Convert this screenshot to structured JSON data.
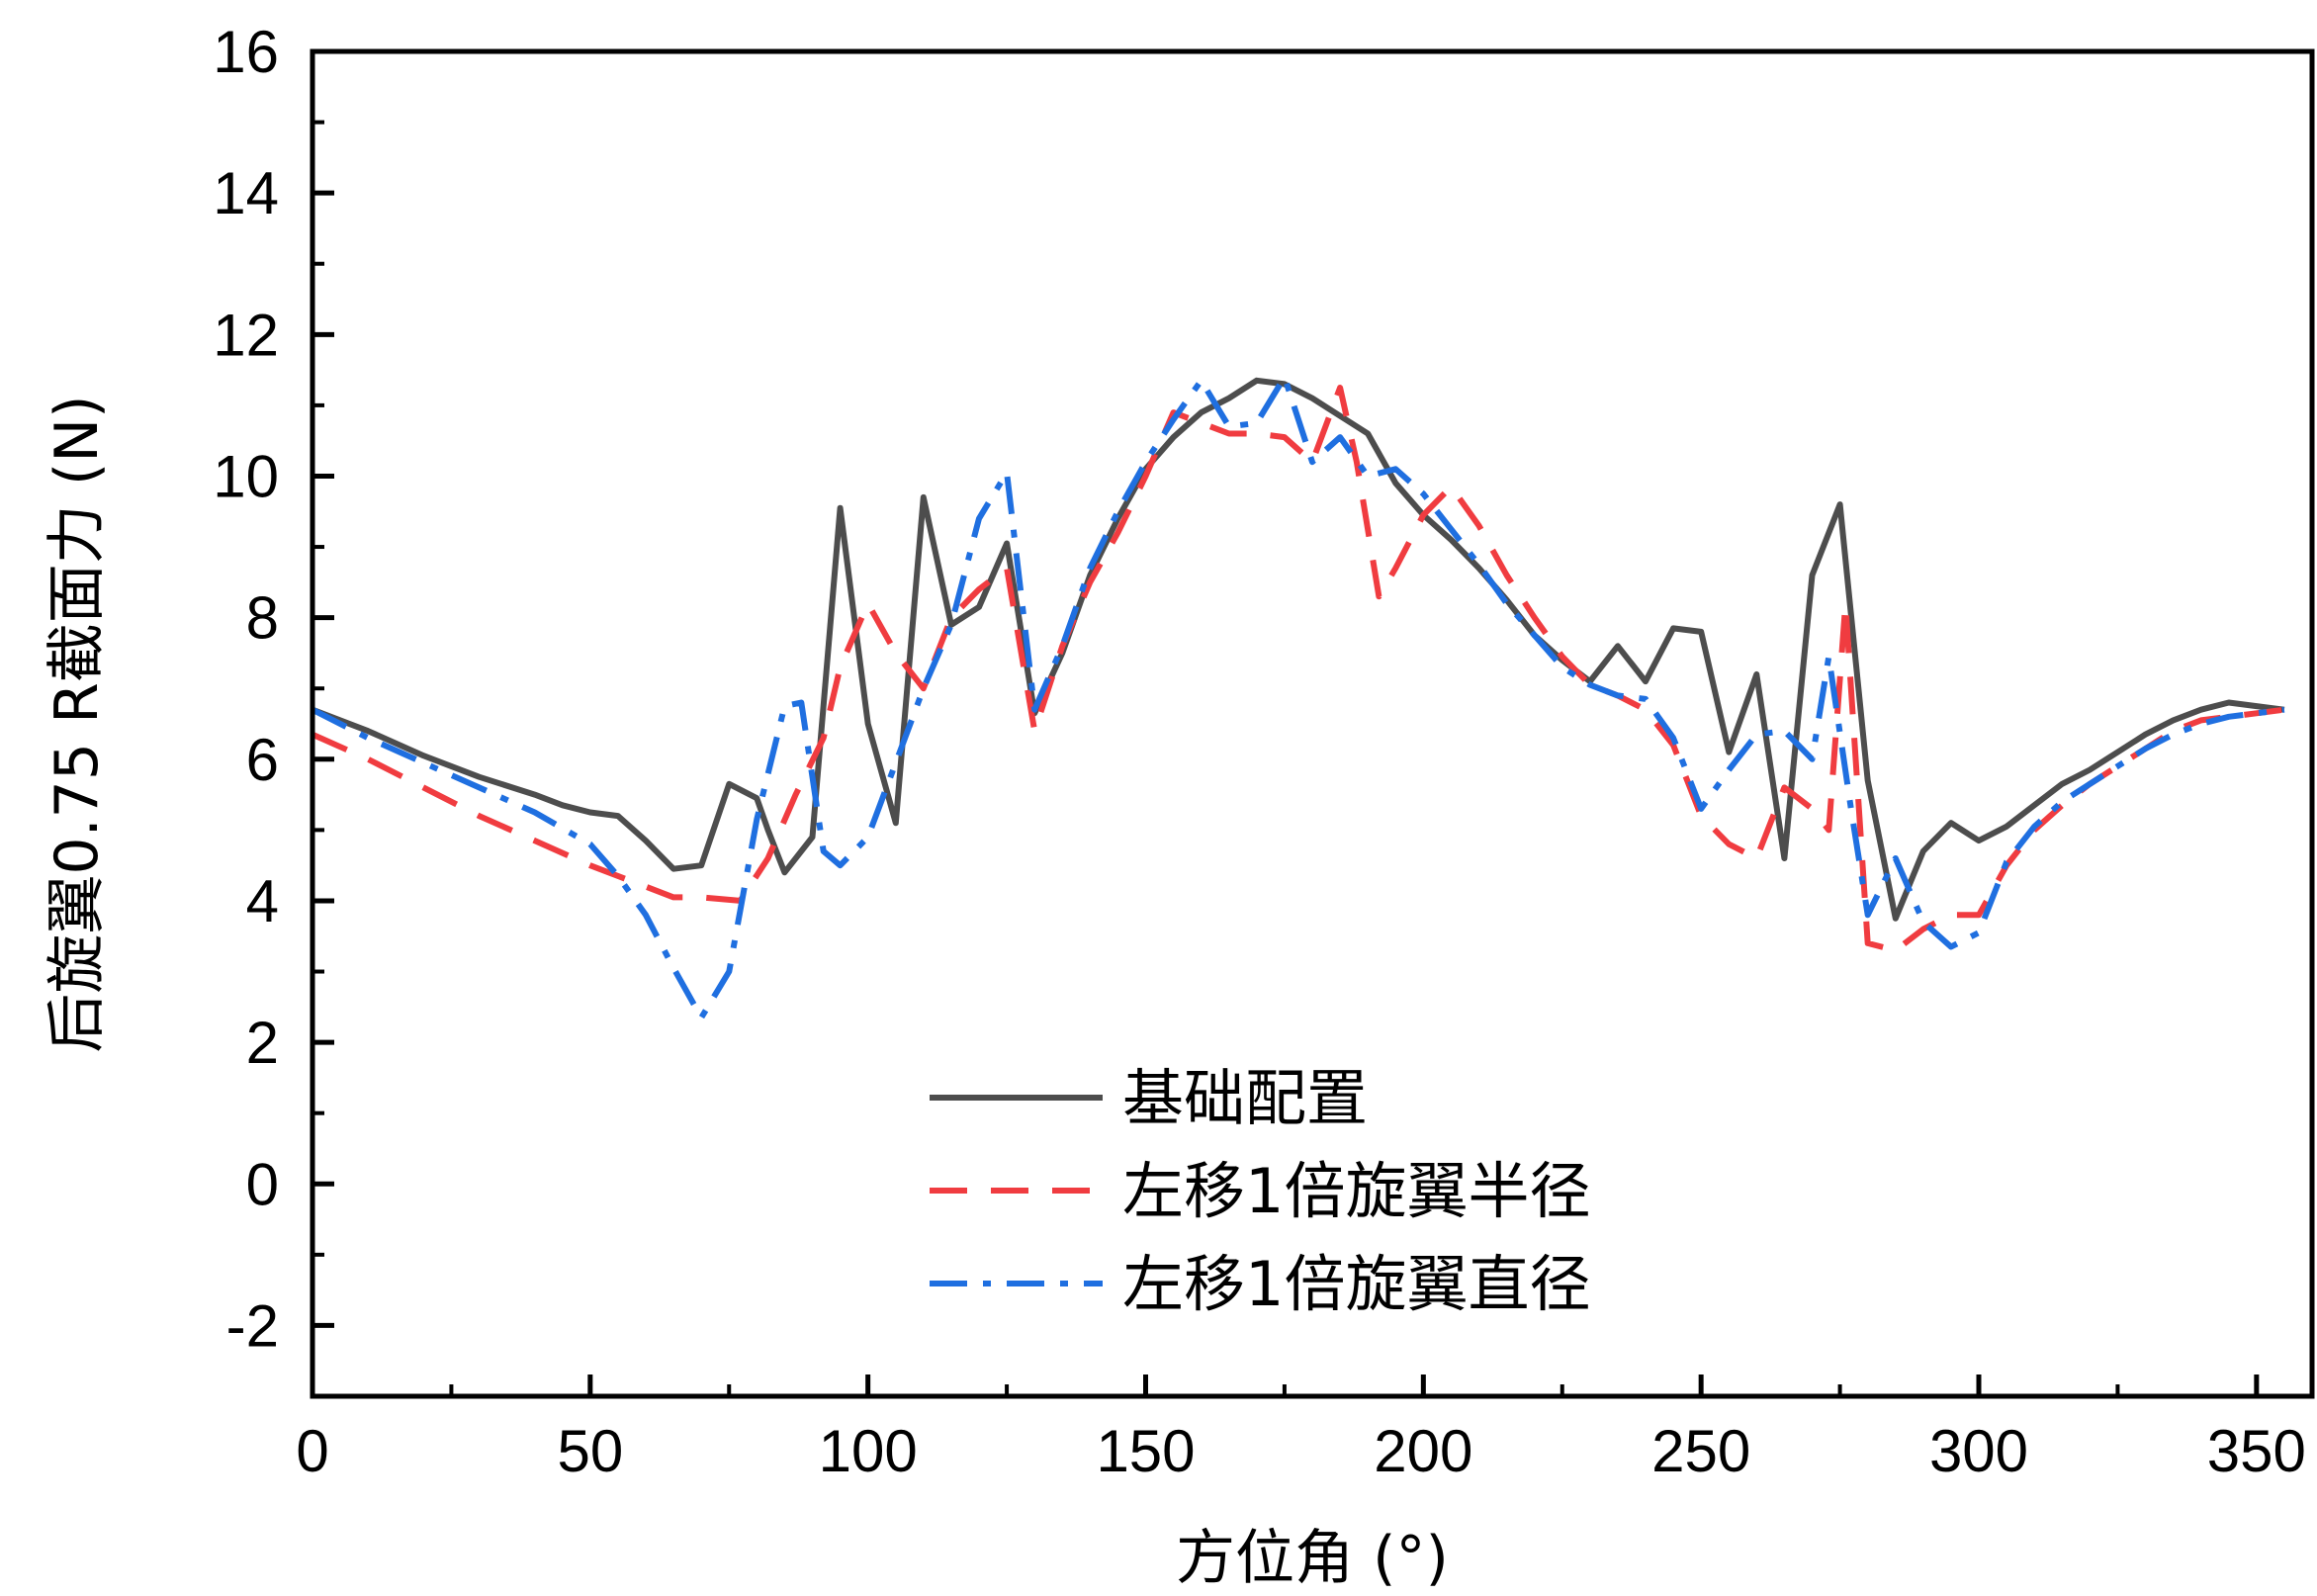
{
  "chart_data": {
    "type": "line",
    "xlabel": "方位角 (°)",
    "ylabel": "后旋翼0.75 R截面力 (N)",
    "xlim": [
      0,
      360
    ],
    "ylim": [
      -3,
      16
    ],
    "xticks": [
      0,
      50,
      100,
      150,
      200,
      250,
      300,
      350
    ],
    "yticks": [
      -2,
      0,
      2,
      4,
      6,
      8,
      10,
      12,
      14,
      16
    ],
    "legend_position": "bottom-center",
    "grid": false,
    "series": [
      {
        "name": "基础配置",
        "color": "#4d4d4d",
        "dash": "solid",
        "x": [
          0,
          10,
          20,
          30,
          40,
          45,
          50,
          55,
          60,
          65,
          70,
          75,
          80,
          82,
          85,
          90,
          95,
          100,
          105,
          110,
          115,
          120,
          125,
          130,
          135,
          140,
          145,
          150,
          155,
          160,
          165,
          170,
          175,
          180,
          185,
          190,
          195,
          200,
          205,
          210,
          215,
          220,
          225,
          230,
          235,
          240,
          245,
          250,
          255,
          260,
          265,
          270,
          275,
          280,
          285,
          290,
          295,
          300,
          305,
          310,
          315,
          320,
          325,
          330,
          335,
          340,
          345,
          350,
          355
        ],
        "y": [
          6.7,
          6.4,
          6.05,
          5.75,
          5.5,
          5.35,
          5.25,
          5.2,
          4.85,
          4.45,
          4.5,
          5.65,
          5.45,
          5.0,
          4.4,
          4.9,
          9.55,
          6.5,
          5.1,
          9.7,
          7.9,
          8.15,
          9.05,
          6.65,
          7.5,
          8.6,
          9.4,
          10.1,
          10.55,
          10.9,
          11.1,
          11.35,
          11.3,
          11.1,
          10.85,
          10.6,
          9.9,
          9.45,
          9.1,
          8.7,
          8.25,
          7.75,
          7.4,
          7.1,
          7.6,
          7.1,
          7.85,
          7.8,
          6.1,
          7.2,
          4.6,
          8.6,
          9.6,
          5.7,
          3.75,
          4.7,
          5.1,
          4.85,
          5.05,
          5.35,
          5.65,
          5.85,
          6.1,
          6.35,
          6.55,
          6.7,
          6.8,
          6.75,
          6.7
        ]
      },
      {
        "name": "左移1倍旋翼半径",
        "color": "#f03c40",
        "dash": "dashed",
        "x": [
          0,
          10,
          20,
          30,
          40,
          50,
          60,
          65,
          70,
          77,
          82,
          87,
          92,
          95,
          100,
          105,
          110,
          115,
          120,
          125,
          130,
          135,
          140,
          145,
          150,
          155,
          160,
          165,
          170,
          175,
          180,
          185,
          188,
          192,
          195,
          200,
          205,
          210,
          215,
          220,
          225,
          230,
          235,
          240,
          245,
          250,
          255,
          260,
          265,
          270,
          273,
          276,
          280,
          285,
          290,
          295,
          300,
          305,
          310,
          315,
          320,
          325,
          330,
          335,
          340,
          345,
          350,
          355
        ],
        "y": [
          6.35,
          6.0,
          5.6,
          5.2,
          4.85,
          4.5,
          4.2,
          4.05,
          4.05,
          4.0,
          4.6,
          5.5,
          6.3,
          7.3,
          8.2,
          7.5,
          7.0,
          8.0,
          8.4,
          8.7,
          6.4,
          7.6,
          8.5,
          9.2,
          10.0,
          10.9,
          10.75,
          10.6,
          10.6,
          10.55,
          10.2,
          11.25,
          10.2,
          8.3,
          8.7,
          9.45,
          9.85,
          9.3,
          8.6,
          8.0,
          7.45,
          7.05,
          6.9,
          6.7,
          6.2,
          5.2,
          4.8,
          4.6,
          5.6,
          5.3,
          5.0,
          8.2,
          3.4,
          3.3,
          3.6,
          3.8,
          3.8,
          4.5,
          5.0,
          5.35,
          5.65,
          5.9,
          6.15,
          6.4,
          6.55,
          6.6,
          6.65,
          6.7
        ]
      },
      {
        "name": "左移1倍旋翼直径",
        "color": "#1f6fe0",
        "dash": "dashdot",
        "x": [
          0,
          10,
          20,
          30,
          40,
          50,
          55,
          60,
          65,
          70,
          75,
          80,
          85,
          88,
          92,
          95,
          100,
          105,
          110,
          115,
          120,
          125,
          130,
          135,
          140,
          145,
          150,
          155,
          160,
          165,
          170,
          175,
          180,
          185,
          190,
          195,
          200,
          205,
          210,
          215,
          220,
          225,
          230,
          235,
          240,
          245,
          250,
          255,
          260,
          265,
          270,
          273,
          277,
          280,
          285,
          290,
          295,
          300,
          305,
          310,
          315,
          320,
          325,
          330,
          335,
          340,
          345,
          350,
          355
        ],
        "y": [
          6.7,
          6.3,
          5.95,
          5.6,
          5.25,
          4.8,
          4.35,
          3.8,
          3.05,
          2.35,
          3.0,
          5.15,
          6.75,
          6.8,
          4.7,
          4.5,
          4.9,
          5.95,
          7.0,
          7.9,
          9.4,
          10.05,
          6.7,
          7.6,
          8.7,
          9.5,
          10.2,
          10.8,
          11.35,
          10.7,
          10.75,
          11.4,
          10.2,
          10.55,
          10.0,
          10.1,
          9.75,
          9.25,
          8.75,
          8.2,
          7.75,
          7.3,
          7.05,
          6.9,
          6.85,
          6.3,
          5.3,
          5.85,
          6.35,
          6.4,
          6.0,
          7.45,
          5.3,
          3.8,
          4.6,
          3.7,
          3.35,
          3.55,
          4.55,
          5.05,
          5.4,
          5.65,
          5.9,
          6.15,
          6.35,
          6.5,
          6.6,
          6.65,
          6.7
        ]
      }
    ]
  }
}
